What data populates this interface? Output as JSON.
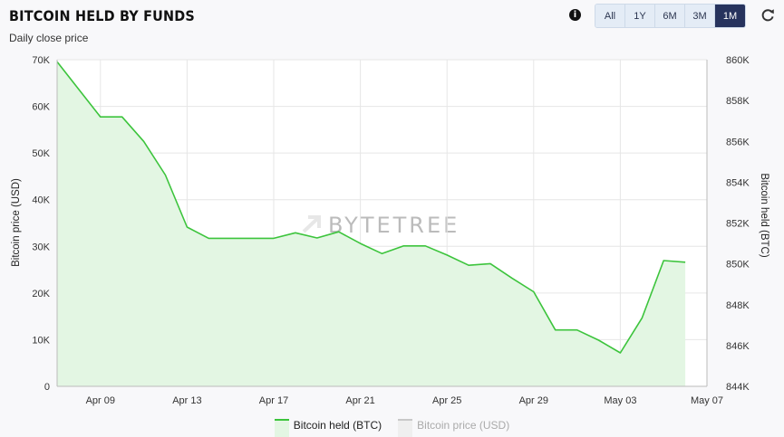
{
  "header": {
    "title": "BITCOIN HELD BY FUNDS",
    "subtitle": "Daily close price",
    "info_icon": "info-icon",
    "refresh_icon": "refresh-icon"
  },
  "range_buttons": [
    {
      "label": "All",
      "active": false
    },
    {
      "label": "1Y",
      "active": false
    },
    {
      "label": "6M",
      "active": false
    },
    {
      "label": "3M",
      "active": false
    },
    {
      "label": "1M",
      "active": true
    }
  ],
  "watermark": "BYTETREE",
  "colors": {
    "btc_line": "#3cc43c",
    "btc_fill": "#e3f6e3",
    "price_line": "#c8c8c8",
    "active_button": "#27335d"
  },
  "chart_data": {
    "type": "area",
    "x_ticks": [
      "Apr 09",
      "Apr 13",
      "Apr 17",
      "Apr 21",
      "Apr 25",
      "Apr 29",
      "May 03",
      "May 07"
    ],
    "xlim": [
      "2024-04-07",
      "2024-05-07"
    ],
    "left_axis": {
      "label": "Bitcoin price (USD)",
      "ticks": [
        "0",
        "10K",
        "20K",
        "30K",
        "40K",
        "50K",
        "60K",
        "70K"
      ],
      "ylim": [
        0,
        70000
      ]
    },
    "right_axis": {
      "label": "Bitcoin held (BTC)",
      "ticks": [
        "844K",
        "846K",
        "848K",
        "850K",
        "852K",
        "854K",
        "856K",
        "858K",
        "860K"
      ],
      "ylim": [
        844000,
        860000
      ]
    },
    "grid": true,
    "legend_position": "bottom",
    "series": [
      {
        "name": "Bitcoin held (BTC)",
        "axis": "right",
        "x": [
          "2024-04-07",
          "2024-04-08",
          "2024-04-09",
          "2024-04-10",
          "2024-04-11",
          "2024-04-12",
          "2024-04-13",
          "2024-04-14",
          "2024-04-15",
          "2024-04-16",
          "2024-04-17",
          "2024-04-18",
          "2024-04-19",
          "2024-04-20",
          "2024-04-21",
          "2024-04-22",
          "2024-04-23",
          "2024-04-24",
          "2024-04-25",
          "2024-04-26",
          "2024-04-27",
          "2024-04-28",
          "2024-04-29",
          "2024-04-30",
          "2024-05-01",
          "2024-05-02",
          "2024-05-03",
          "2024-05-04",
          "2024-05-05",
          "2024-05-06"
        ],
        "values": [
          859900,
          858550,
          857200,
          857200,
          856000,
          854350,
          851800,
          851250,
          851250,
          851250,
          851250,
          851520,
          851270,
          851570,
          851000,
          850500,
          850880,
          850880,
          850430,
          849930,
          850010,
          849300,
          848630,
          846760,
          846760,
          846260,
          845640,
          847340,
          850160,
          850080
        ]
      },
      {
        "name": "Bitcoin price (USD)",
        "axis": "left",
        "x": [],
        "values": []
      }
    ]
  }
}
